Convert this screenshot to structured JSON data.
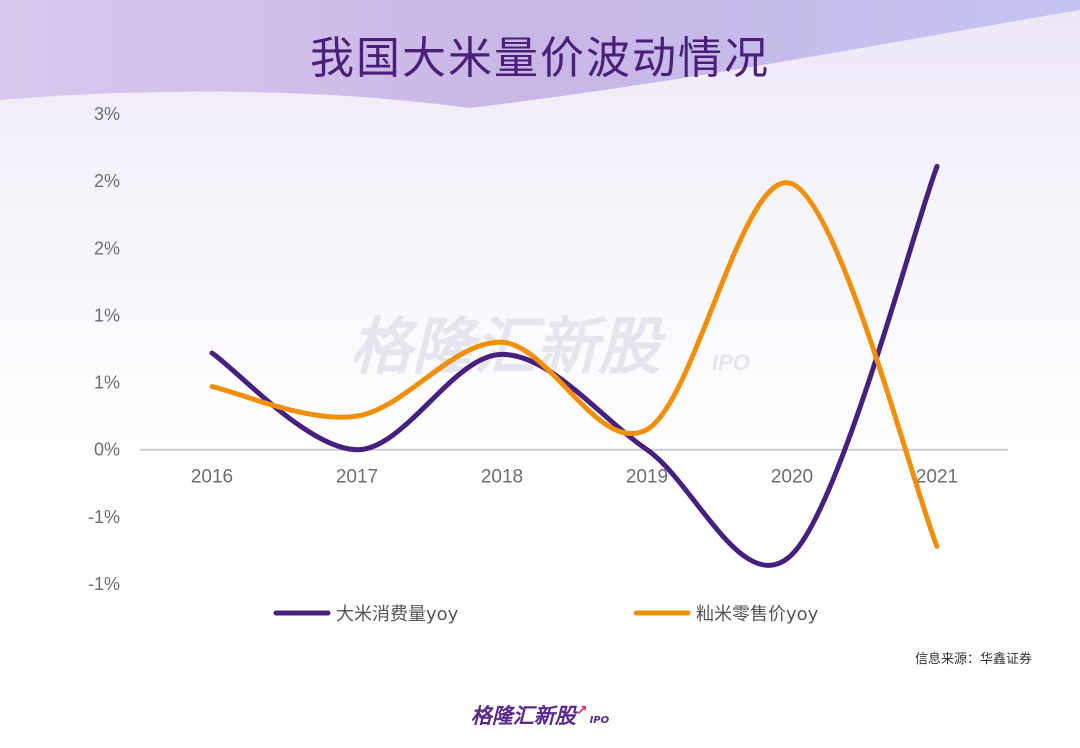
{
  "header": {
    "title": "我国大米量价波动情况"
  },
  "watermark": {
    "text": "格隆汇新股",
    "suffix": "IPO"
  },
  "source": {
    "text": "信息来源：华鑫证券"
  },
  "footer": {
    "logo_text": "格隆汇新股",
    "logo_suffix": "IPO"
  },
  "colors": {
    "series_consumption": "#46207d",
    "series_price": "#f0900a",
    "title": "#4b1f78",
    "axis": "#cccccc"
  },
  "chart_data": {
    "type": "line",
    "smooth": true,
    "x": [
      "2016",
      "2017",
      "2018",
      "2019",
      "2020",
      "2021"
    ],
    "y_tick_labels": [
      "3%",
      "2%",
      "2%",
      "1%",
      "1%",
      "0%",
      "-1%",
      "-1%"
    ],
    "y_tick_values": [
      2.5,
      2.0,
      1.5,
      1.0,
      0.5,
      0.0,
      -0.5,
      -1.0
    ],
    "ylim": [
      -1.0,
      2.5
    ],
    "grid": false,
    "legend_position": "bottom",
    "series": [
      {
        "name": "大米消费量yoy",
        "color": "#46207d",
        "values": [
          0.72,
          0.0,
          0.71,
          0.0,
          -0.78,
          2.11
        ]
      },
      {
        "name": "籼米零售价yoy",
        "color": "#f0900a",
        "values": [
          0.47,
          0.25,
          0.8,
          0.15,
          1.98,
          -0.72
        ]
      }
    ]
  }
}
